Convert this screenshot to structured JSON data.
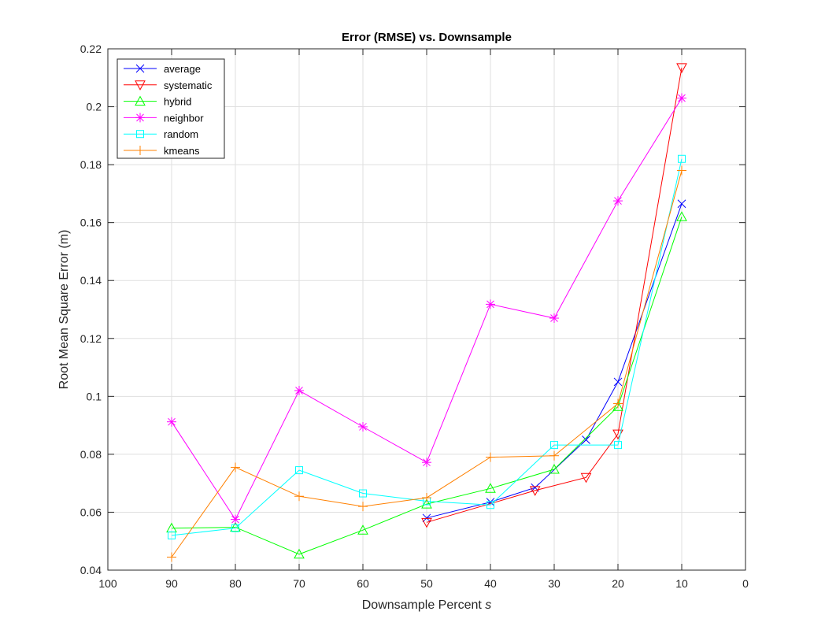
{
  "chart_data": {
    "type": "line",
    "title": "Error (RMSE) vs. Downsample",
    "xlabel_main": "Downsample Percent ",
    "xlabel_var": "s",
    "ylabel": "Root Mean Square Error (m)",
    "xlim": [
      0,
      100
    ],
    "x_reversed": true,
    "ylim": [
      0.04,
      0.22
    ],
    "xticks": [
      100,
      90,
      80,
      70,
      60,
      50,
      40,
      30,
      20,
      10,
      0
    ],
    "yticks": [
      0.04,
      0.06,
      0.08,
      0.1,
      0.12,
      0.14,
      0.16,
      0.18,
      0.2,
      0.22
    ],
    "ytick_labels": [
      "0.04",
      "0.06",
      "0.08",
      "0.1",
      "0.12",
      "0.14",
      "0.16",
      "0.18",
      "0.2",
      "0.22"
    ],
    "grid": true,
    "legend_position": "top-left",
    "series": [
      {
        "name": "average",
        "color": "#0000ff",
        "marker": "x",
        "x": [
          50,
          40,
          33,
          25,
          20,
          10
        ],
        "y": [
          0.058,
          0.0635,
          0.0685,
          0.085,
          0.105,
          0.1665
        ]
      },
      {
        "name": "systematic",
        "color": "#ff0000",
        "marker": "triangle-down",
        "x": [
          50,
          33,
          25,
          20,
          10
        ],
        "y": [
          0.0565,
          0.0675,
          0.072,
          0.087,
          0.2135
        ]
      },
      {
        "name": "hybrid",
        "color": "#00ff00",
        "marker": "triangle-up",
        "x": [
          90,
          80,
          70,
          60,
          50,
          40,
          30,
          20,
          10
        ],
        "y": [
          0.0545,
          0.0548,
          0.0455,
          0.0538,
          0.0628,
          0.0682,
          0.0748,
          0.0965,
          0.162
        ]
      },
      {
        "name": "neighbor",
        "color": "#ff00ff",
        "marker": "asterisk",
        "x": [
          90,
          80,
          70,
          60,
          50,
          40,
          30,
          20,
          10
        ],
        "y": [
          0.0912,
          0.0575,
          0.102,
          0.0895,
          0.0772,
          0.1318,
          0.127,
          0.1675,
          0.203
        ]
      },
      {
        "name": "random",
        "color": "#00ffff",
        "marker": "square",
        "x": [
          90,
          80,
          70,
          60,
          50,
          40,
          30,
          20,
          10
        ],
        "y": [
          0.052,
          0.0545,
          0.0745,
          0.0665,
          0.0638,
          0.0625,
          0.0832,
          0.0832,
          0.182
        ]
      },
      {
        "name": "kmeans",
        "color": "#ff8000",
        "marker": "plus",
        "x": [
          90,
          80,
          70,
          60,
          50,
          40,
          30,
          20,
          10
        ],
        "y": [
          0.0445,
          0.0755,
          0.0655,
          0.062,
          0.065,
          0.079,
          0.0795,
          0.0975,
          0.178
        ]
      }
    ]
  }
}
